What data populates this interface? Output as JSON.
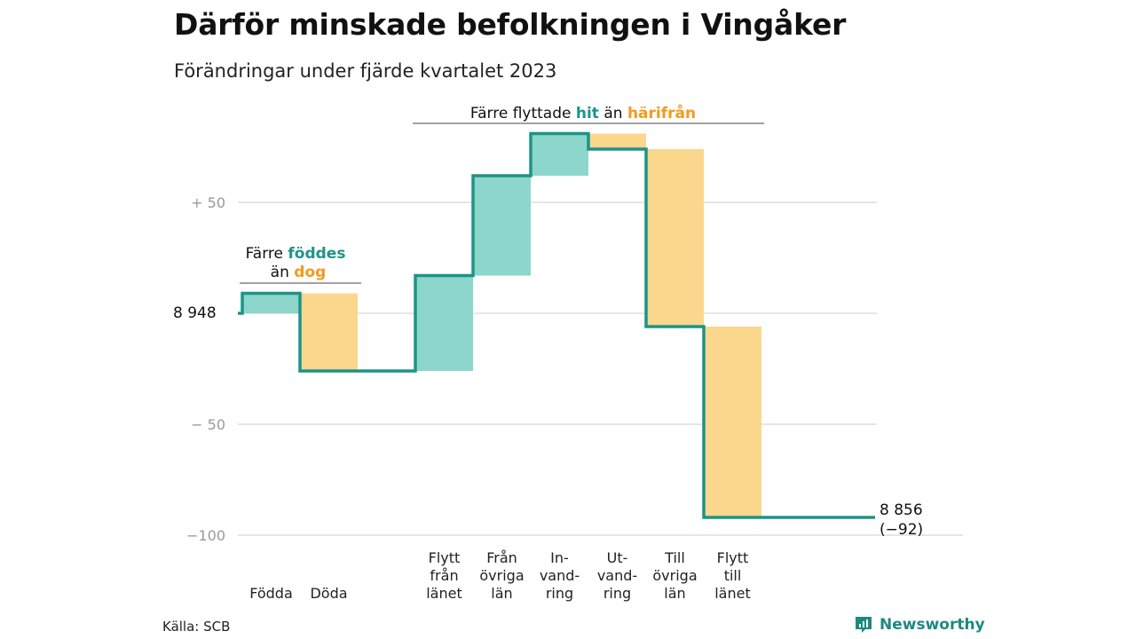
{
  "title": "Därför minskade befolkningen i Vingåker",
  "subtitle": "Förändringar under fjärde kvartalet 2023",
  "source": "Källa: SCB",
  "brand": "Newsworthy",
  "colors": {
    "increase": "#8dd6cb",
    "decrease": "#fbd78e",
    "line": "#1d9488",
    "accent_teal": "#1d9488",
    "accent_orange": "#f29a1f",
    "grid": "#dddddd"
  },
  "annotations": {
    "births": {
      "line1_prefix": "Färre",
      "line1_highlight": "föddes",
      "line2_prefix": "än",
      "line2_highlight": "dog"
    },
    "moves": {
      "prefix": "Färre flyttade",
      "highlight1": "hit",
      "middle": "än",
      "highlight2": "härifrån"
    }
  },
  "end_label": {
    "value": "8 856",
    "change": "(−92)"
  },
  "chart_data": {
    "type": "waterfall",
    "title": "Därför minskade befolkningen i Vingåker",
    "subtitle": "Förändringar under fjärde kvartalet 2023",
    "start_value": 8948,
    "start_label": "8  948",
    "end_value": 8856,
    "net_change": -92,
    "y_ticks": [
      {
        "value": 50,
        "label": "+  50"
      },
      {
        "value": -50,
        "label": "−  50"
      },
      {
        "value": -100,
        "label": "−100"
      }
    ],
    "ylim": [
      -100,
      87
    ],
    "categories": [
      {
        "label": [
          "Födda"
        ],
        "change": 9,
        "type": "in"
      },
      {
        "label": [
          "Döda"
        ],
        "change": -35,
        "type": "out"
      },
      {
        "label": [],
        "change": 0,
        "type": "gap"
      },
      {
        "label": [
          "Flytt",
          "från",
          "länet"
        ],
        "change": 43,
        "type": "in"
      },
      {
        "label": [
          "Från",
          "övriga",
          "län"
        ],
        "change": 45,
        "type": "in"
      },
      {
        "label": [
          "In-",
          "vand-",
          "ring"
        ],
        "change": 19,
        "type": "in"
      },
      {
        "label": [
          "Ut-",
          "vand-",
          "ring"
        ],
        "change": -7,
        "type": "out"
      },
      {
        "label": [
          "Till",
          "övriga",
          "län"
        ],
        "change": -80,
        "type": "out"
      },
      {
        "label": [
          "Flytt",
          "till",
          "länet"
        ],
        "change": -86,
        "type": "out"
      }
    ]
  }
}
